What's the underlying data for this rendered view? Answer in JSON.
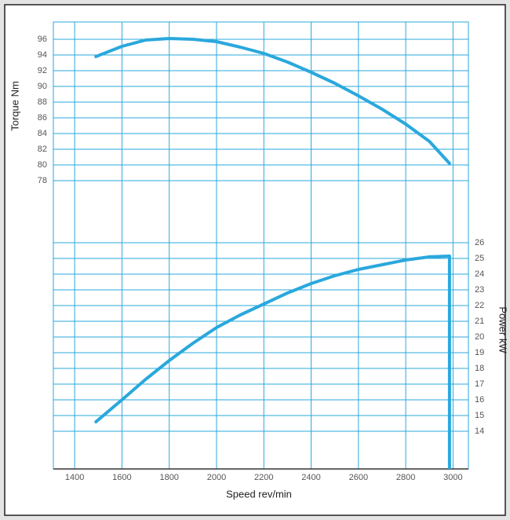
{
  "chart_data": {
    "type": "line",
    "x_label": "Speed rev/min",
    "y_label": "Torque Nm",
    "y2_label": "Power kW",
    "x": [
      1490,
      1600,
      1700,
      1800,
      1900,
      2000,
      2100,
      2200,
      2300,
      2400,
      2500,
      2600,
      2700,
      2800,
      2900,
      2985
    ],
    "series": [
      {
        "name": "Torque",
        "color": "#2aa8dc",
        "values": [
          93.8,
          95.1,
          95.9,
          96.1,
          96.0,
          95.7,
          95.0,
          94.2,
          93.1,
          91.8,
          90.4,
          88.8,
          87.1,
          85.2,
          83.0,
          80.2
        ]
      },
      {
        "name": "Power",
        "color": "#2aa8dc",
        "axis": "y2",
        "values": [
          14.6,
          16.0,
          17.3,
          18.5,
          19.6,
          20.6,
          21.4,
          22.1,
          22.8,
          23.4,
          23.9,
          24.3,
          24.6,
          24.9,
          25.1,
          25.15
        ]
      }
    ],
    "xlim": [
      1310,
      3065
    ],
    "xticks": [
      1400,
      1600,
      1800,
      2000,
      2200,
      2400,
      2600,
      2800,
      3000
    ],
    "ylim": [
      41.3,
      98.2
    ],
    "yticks": [
      78,
      80,
      82,
      84,
      86,
      88,
      90,
      92,
      94,
      96
    ],
    "y2lim": [
      11.6,
      40.05
    ],
    "y2ticks": [
      14,
      15,
      16,
      17,
      18,
      19,
      20,
      21,
      22,
      23,
      24,
      25,
      26
    ],
    "grid": true,
    "grid_color": "#2aa8dc"
  }
}
